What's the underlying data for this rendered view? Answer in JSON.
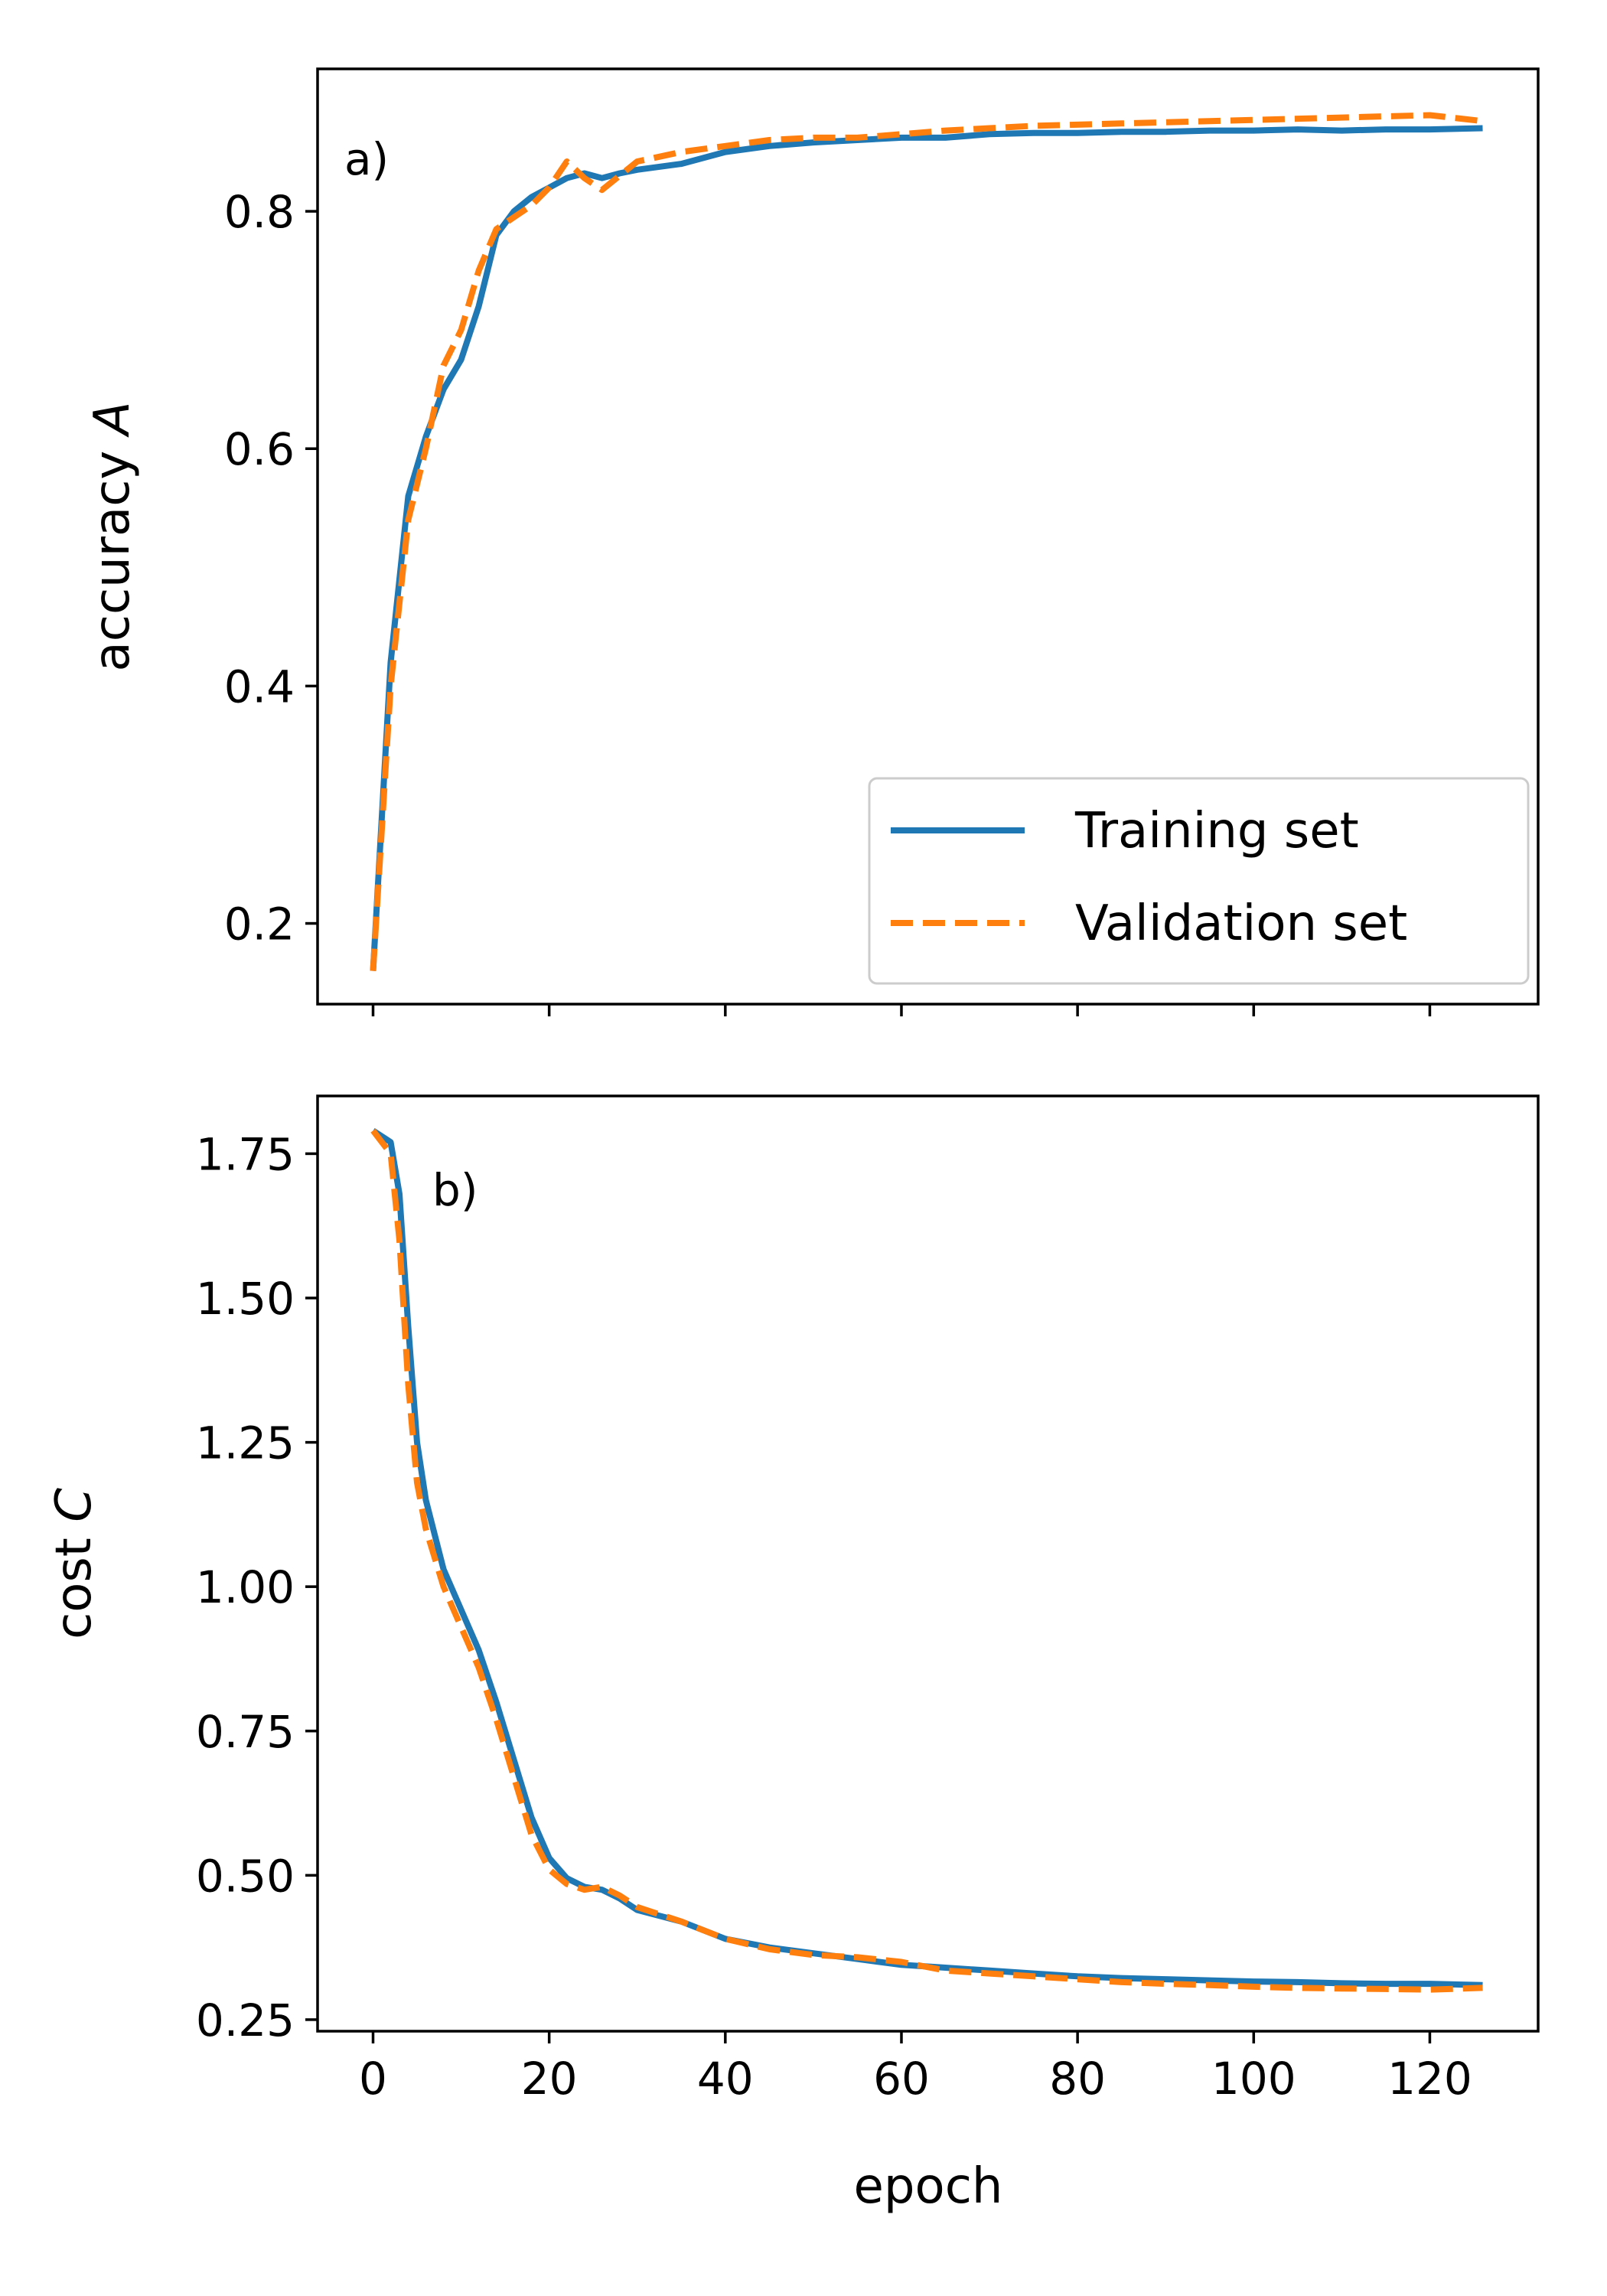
{
  "chart_data": [
    {
      "type": "line",
      "panel_label": "a)",
      "xlabel": "",
      "ylabel": "accuracy A",
      "ylabel_prefix": "accuracy ",
      "ylabel_var": "A",
      "xlim": [
        -6.3,
        132.3
      ],
      "ylim": [
        0.132,
        0.92
      ],
      "xticks": [
        0,
        20,
        40,
        60,
        80,
        100,
        120
      ],
      "xtick_labels_visible": false,
      "yticks": [
        0.2,
        0.4,
        0.6,
        0.8
      ],
      "ytick_labels": [
        "0.2",
        "0.4",
        "0.6",
        "0.8"
      ],
      "legend": {
        "position": "lower-right",
        "entries": [
          "Training set",
          "Validation set"
        ]
      },
      "series": [
        {
          "name": "Training set",
          "color": "#1f77b4",
          "style": "solid",
          "x": [
            0,
            2,
            4,
            6,
            8,
            10,
            12,
            14,
            16,
            18,
            20,
            22,
            24,
            26,
            28,
            30,
            35,
            40,
            45,
            50,
            55,
            60,
            65,
            70,
            75,
            80,
            85,
            90,
            95,
            100,
            105,
            110,
            115,
            120,
            126
          ],
          "values": [
            0.16,
            0.42,
            0.56,
            0.61,
            0.65,
            0.675,
            0.72,
            0.78,
            0.8,
            0.812,
            0.82,
            0.828,
            0.832,
            0.828,
            0.832,
            0.835,
            0.84,
            0.85,
            0.855,
            0.858,
            0.86,
            0.862,
            0.862,
            0.865,
            0.866,
            0.866,
            0.867,
            0.867,
            0.868,
            0.868,
            0.869,
            0.868,
            0.869,
            0.869,
            0.87
          ]
        },
        {
          "name": "Validation set",
          "color": "#ff7f0e",
          "style": "dashed",
          "x": [
            0,
            2,
            4,
            6,
            8,
            10,
            12,
            14,
            16,
            18,
            20,
            22,
            24,
            26,
            28,
            30,
            35,
            40,
            45,
            50,
            55,
            60,
            65,
            70,
            75,
            80,
            85,
            90,
            95,
            100,
            105,
            110,
            115,
            120,
            126
          ],
          "values": [
            0.16,
            0.4,
            0.54,
            0.6,
            0.67,
            0.7,
            0.75,
            0.785,
            0.795,
            0.805,
            0.82,
            0.842,
            0.828,
            0.818,
            0.83,
            0.842,
            0.85,
            0.855,
            0.86,
            0.862,
            0.862,
            0.865,
            0.868,
            0.87,
            0.872,
            0.873,
            0.874,
            0.875,
            0.876,
            0.877,
            0.878,
            0.879,
            0.88,
            0.881,
            0.876
          ]
        }
      ]
    },
    {
      "type": "line",
      "panel_label": "b)",
      "xlabel": "epoch",
      "ylabel": "cost C",
      "ylabel_prefix": "cost ",
      "ylabel_var": "C",
      "xlim": [
        -6.3,
        132.3
      ],
      "ylim": [
        0.23,
        1.85
      ],
      "xticks": [
        0,
        20,
        40,
        60,
        80,
        100,
        120
      ],
      "xtick_labels": [
        "0",
        "20",
        "40",
        "60",
        "80",
        "100",
        "120"
      ],
      "yticks": [
        0.25,
        0.5,
        0.75,
        1.0,
        1.25,
        1.5,
        1.75
      ],
      "ytick_labels": [
        "0.25",
        "0.50",
        "0.75",
        "1.00",
        "1.25",
        "1.50",
        "1.75"
      ],
      "series": [
        {
          "name": "Training set",
          "color": "#1f77b4",
          "style": "solid",
          "x": [
            0,
            2,
            3,
            4,
            5,
            6,
            8,
            10,
            12,
            14,
            16,
            18,
            20,
            22,
            24,
            26,
            28,
            30,
            35,
            40,
            45,
            50,
            55,
            60,
            65,
            70,
            75,
            80,
            85,
            90,
            95,
            100,
            105,
            110,
            115,
            120,
            126
          ],
          "values": [
            1.79,
            1.77,
            1.68,
            1.45,
            1.25,
            1.15,
            1.03,
            0.96,
            0.89,
            0.8,
            0.7,
            0.6,
            0.53,
            0.495,
            0.48,
            0.475,
            0.46,
            0.44,
            0.42,
            0.39,
            0.375,
            0.365,
            0.355,
            0.345,
            0.34,
            0.335,
            0.33,
            0.325,
            0.322,
            0.32,
            0.318,
            0.316,
            0.315,
            0.313,
            0.312,
            0.312,
            0.31
          ]
        },
        {
          "name": "Validation set",
          "color": "#ff7f0e",
          "style": "dashed",
          "x": [
            0,
            2,
            3,
            4,
            5,
            6,
            8,
            10,
            12,
            14,
            16,
            18,
            20,
            22,
            24,
            26,
            28,
            30,
            35,
            40,
            45,
            50,
            55,
            60,
            65,
            70,
            75,
            80,
            85,
            90,
            95,
            100,
            105,
            110,
            115,
            120,
            126
          ],
          "values": [
            1.79,
            1.75,
            1.6,
            1.35,
            1.18,
            1.1,
            1.0,
            0.93,
            0.86,
            0.77,
            0.67,
            0.57,
            0.51,
            0.485,
            0.475,
            0.48,
            0.465,
            0.445,
            0.42,
            0.39,
            0.372,
            0.362,
            0.358,
            0.35,
            0.335,
            0.33,
            0.325,
            0.32,
            0.315,
            0.312,
            0.31,
            0.307,
            0.305,
            0.304,
            0.303,
            0.302,
            0.305
          ]
        }
      ]
    }
  ]
}
